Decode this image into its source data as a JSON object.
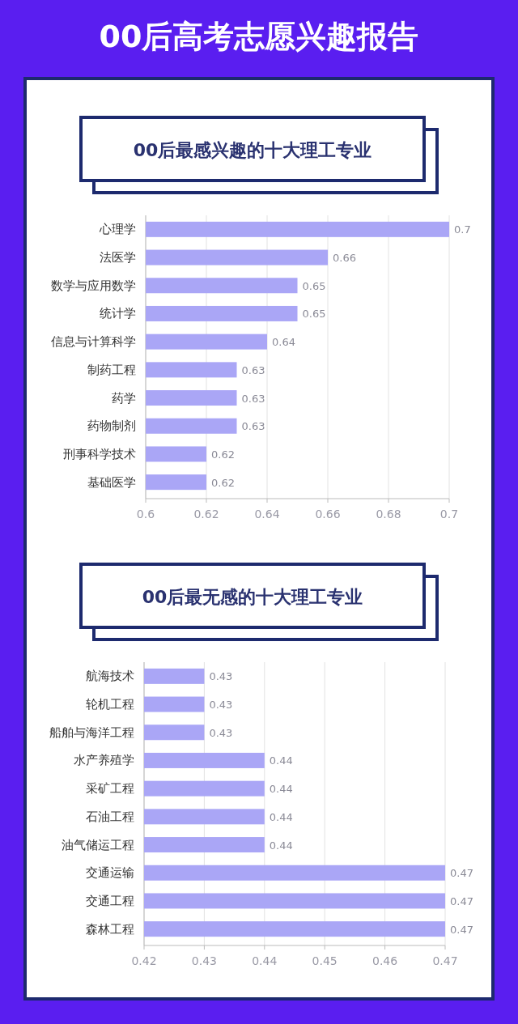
{
  "chart_data": [
    {
      "type": "bar",
      "orientation": "horizontal",
      "title": "00后高考志愿兴趣报告",
      "subtitle": "00后最感兴趣的十大理工专业",
      "categories": [
        "心理学",
        "法医学",
        "数学与应用数学",
        "统计学",
        "信息与计算科学",
        "制药工程",
        "药学",
        "药物制剂",
        "刑事科学技术",
        "基础医学"
      ],
      "values": [
        0.7,
        0.66,
        0.65,
        0.65,
        0.64,
        0.63,
        0.63,
        0.63,
        0.62,
        0.62
      ],
      "color": "#aaa6f6",
      "xlim": [
        0.6,
        0.7
      ],
      "xticks": [
        0.6,
        0.62,
        0.64,
        0.66,
        0.68,
        0.7
      ],
      "grid": "x",
      "data_labels": true
    },
    {
      "type": "bar",
      "orientation": "horizontal",
      "subtitle": "00后最无感的十大理工专业",
      "categories": [
        "航海技术",
        "轮机工程",
        "船舶与海洋工程",
        "水产养殖学",
        "采矿工程",
        "石油工程",
        "油气储运工程",
        "交通运输",
        "交通工程",
        "森林工程"
      ],
      "values": [
        0.43,
        0.43,
        0.43,
        0.44,
        0.44,
        0.44,
        0.44,
        0.47,
        0.47,
        0.47
      ],
      "color": "#aaa6f6",
      "xlim": [
        0.42,
        0.47
      ],
      "xticks": [
        0.42,
        0.43,
        0.44,
        0.45,
        0.46,
        0.47
      ],
      "grid": "x",
      "data_labels": true
    }
  ]
}
